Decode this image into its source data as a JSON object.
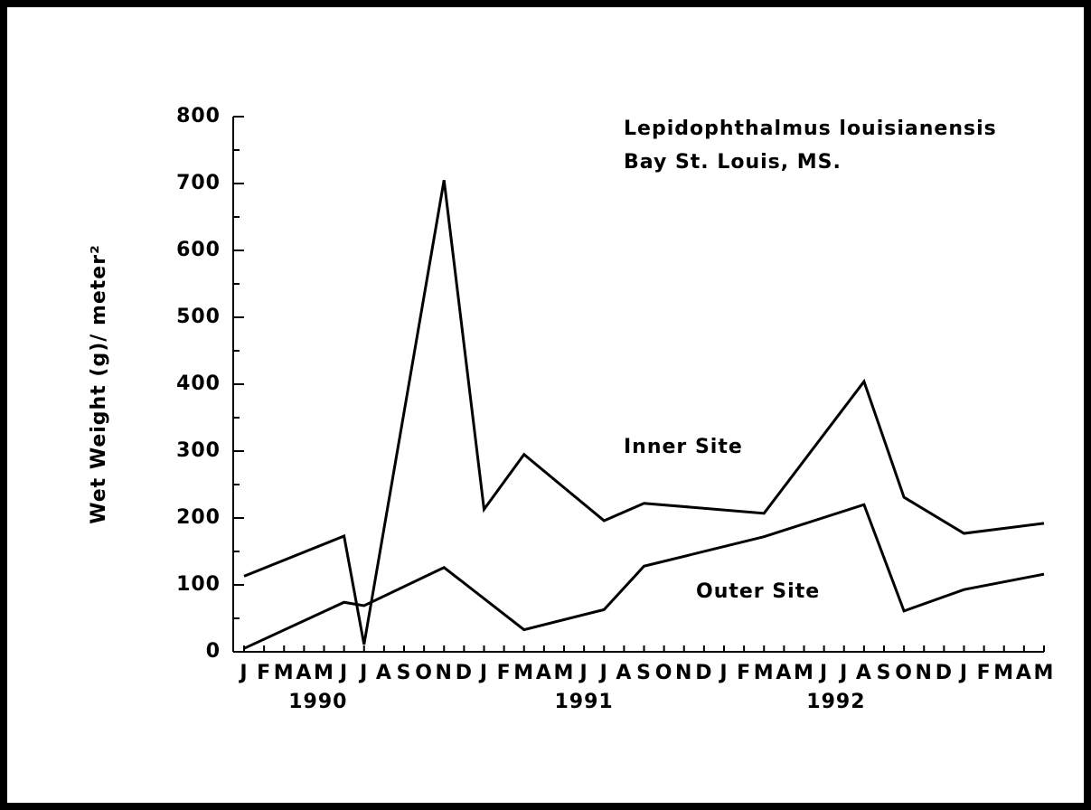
{
  "chart_data": {
    "type": "line",
    "annotations": [
      "Lepidophthalmus louisianensis",
      "Bay St. Louis, MS."
    ],
    "ylabel": "Wet Weight (g)/ meter²",
    "categories": [
      "J",
      "F",
      "M",
      "A",
      "M",
      "J",
      "J",
      "A",
      "S",
      "O",
      "N",
      "D",
      "J",
      "F",
      "M",
      "A",
      "M",
      "J",
      "J",
      "A",
      "S",
      "O",
      "N",
      "D",
      "J",
      "F",
      "M",
      "A",
      "M",
      "J",
      "J",
      "A",
      "S",
      "O",
      "N",
      "D",
      "J",
      "F",
      "M",
      "A",
      "M"
    ],
    "x_groups": [
      "1990",
      "1991",
      "1992"
    ],
    "series": [
      {
        "name": "Inner Site",
        "color": "#000000",
        "values": [
          113,
          null,
          null,
          null,
          null,
          173,
          11,
          null,
          null,
          null,
          705,
          null,
          213,
          null,
          295,
          null,
          null,
          null,
          196,
          null,
          222,
          null,
          null,
          null,
          null,
          null,
          207,
          null,
          null,
          null,
          null,
          404,
          null,
          231,
          null,
          null,
          177,
          null,
          null,
          null,
          192
        ]
      },
      {
        "name": "Outer Site",
        "color": "#000000",
        "values": [
          5,
          null,
          null,
          null,
          null,
          74,
          69,
          null,
          null,
          null,
          126,
          null,
          null,
          null,
          33,
          null,
          null,
          null,
          63,
          null,
          128,
          null,
          null,
          null,
          null,
          null,
          172,
          null,
          null,
          null,
          null,
          220,
          null,
          61,
          null,
          null,
          93,
          null,
          null,
          null,
          116
        ]
      }
    ],
    "ylim": [
      0,
      800
    ],
    "yticks": [
      0,
      100,
      200,
      300,
      400,
      500,
      600,
      700,
      800
    ]
  }
}
